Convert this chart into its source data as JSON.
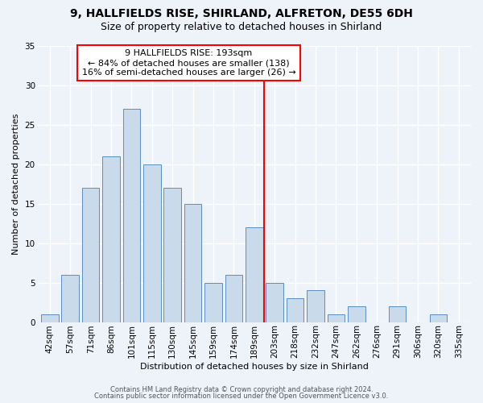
{
  "title1": "9, HALLFIELDS RISE, SHIRLAND, ALFRETON, DE55 6DH",
  "title2": "Size of property relative to detached houses in Shirland",
  "xlabel": "Distribution of detached houses by size in Shirland",
  "ylabel": "Number of detached properties",
  "bar_labels": [
    "42sqm",
    "57sqm",
    "71sqm",
    "86sqm",
    "101sqm",
    "115sqm",
    "130sqm",
    "145sqm",
    "159sqm",
    "174sqm",
    "189sqm",
    "203sqm",
    "218sqm",
    "232sqm",
    "247sqm",
    "262sqm",
    "276sqm",
    "291sqm",
    "306sqm",
    "320sqm",
    "335sqm"
  ],
  "bar_heights": [
    1,
    6,
    17,
    21,
    27,
    20,
    17,
    15,
    5,
    6,
    12,
    5,
    3,
    4,
    1,
    2,
    0,
    2,
    0,
    1,
    0
  ],
  "bar_color": "#c9daea",
  "bar_edge_color": "#5a8fc2",
  "red_line_x": 10.5,
  "annotation_text": "9 HALLFIELDS RISE: 193sqm\n← 84% of detached houses are smaller (138)\n16% of semi-detached houses are larger (26) →",
  "annotation_box_color": "white",
  "annotation_box_edge_color": "red",
  "red_line_color": "red",
  "ylim": [
    0,
    35
  ],
  "yticks": [
    0,
    5,
    10,
    15,
    20,
    25,
    30,
    35
  ],
  "footer1": "Contains HM Land Registry data © Crown copyright and database right 2024.",
  "footer2": "Contains public sector information licensed under the Open Government Licence v3.0.",
  "background_color": "#eef2f9",
  "grid_color": "white",
  "title1_fontsize": 10,
  "title2_fontsize": 9,
  "xlabel_fontsize": 8,
  "ylabel_fontsize": 8,
  "tick_fontsize": 7.5,
  "bar_width": 0.85,
  "annotation_fontsize": 8,
  "footer_fontsize": 6
}
